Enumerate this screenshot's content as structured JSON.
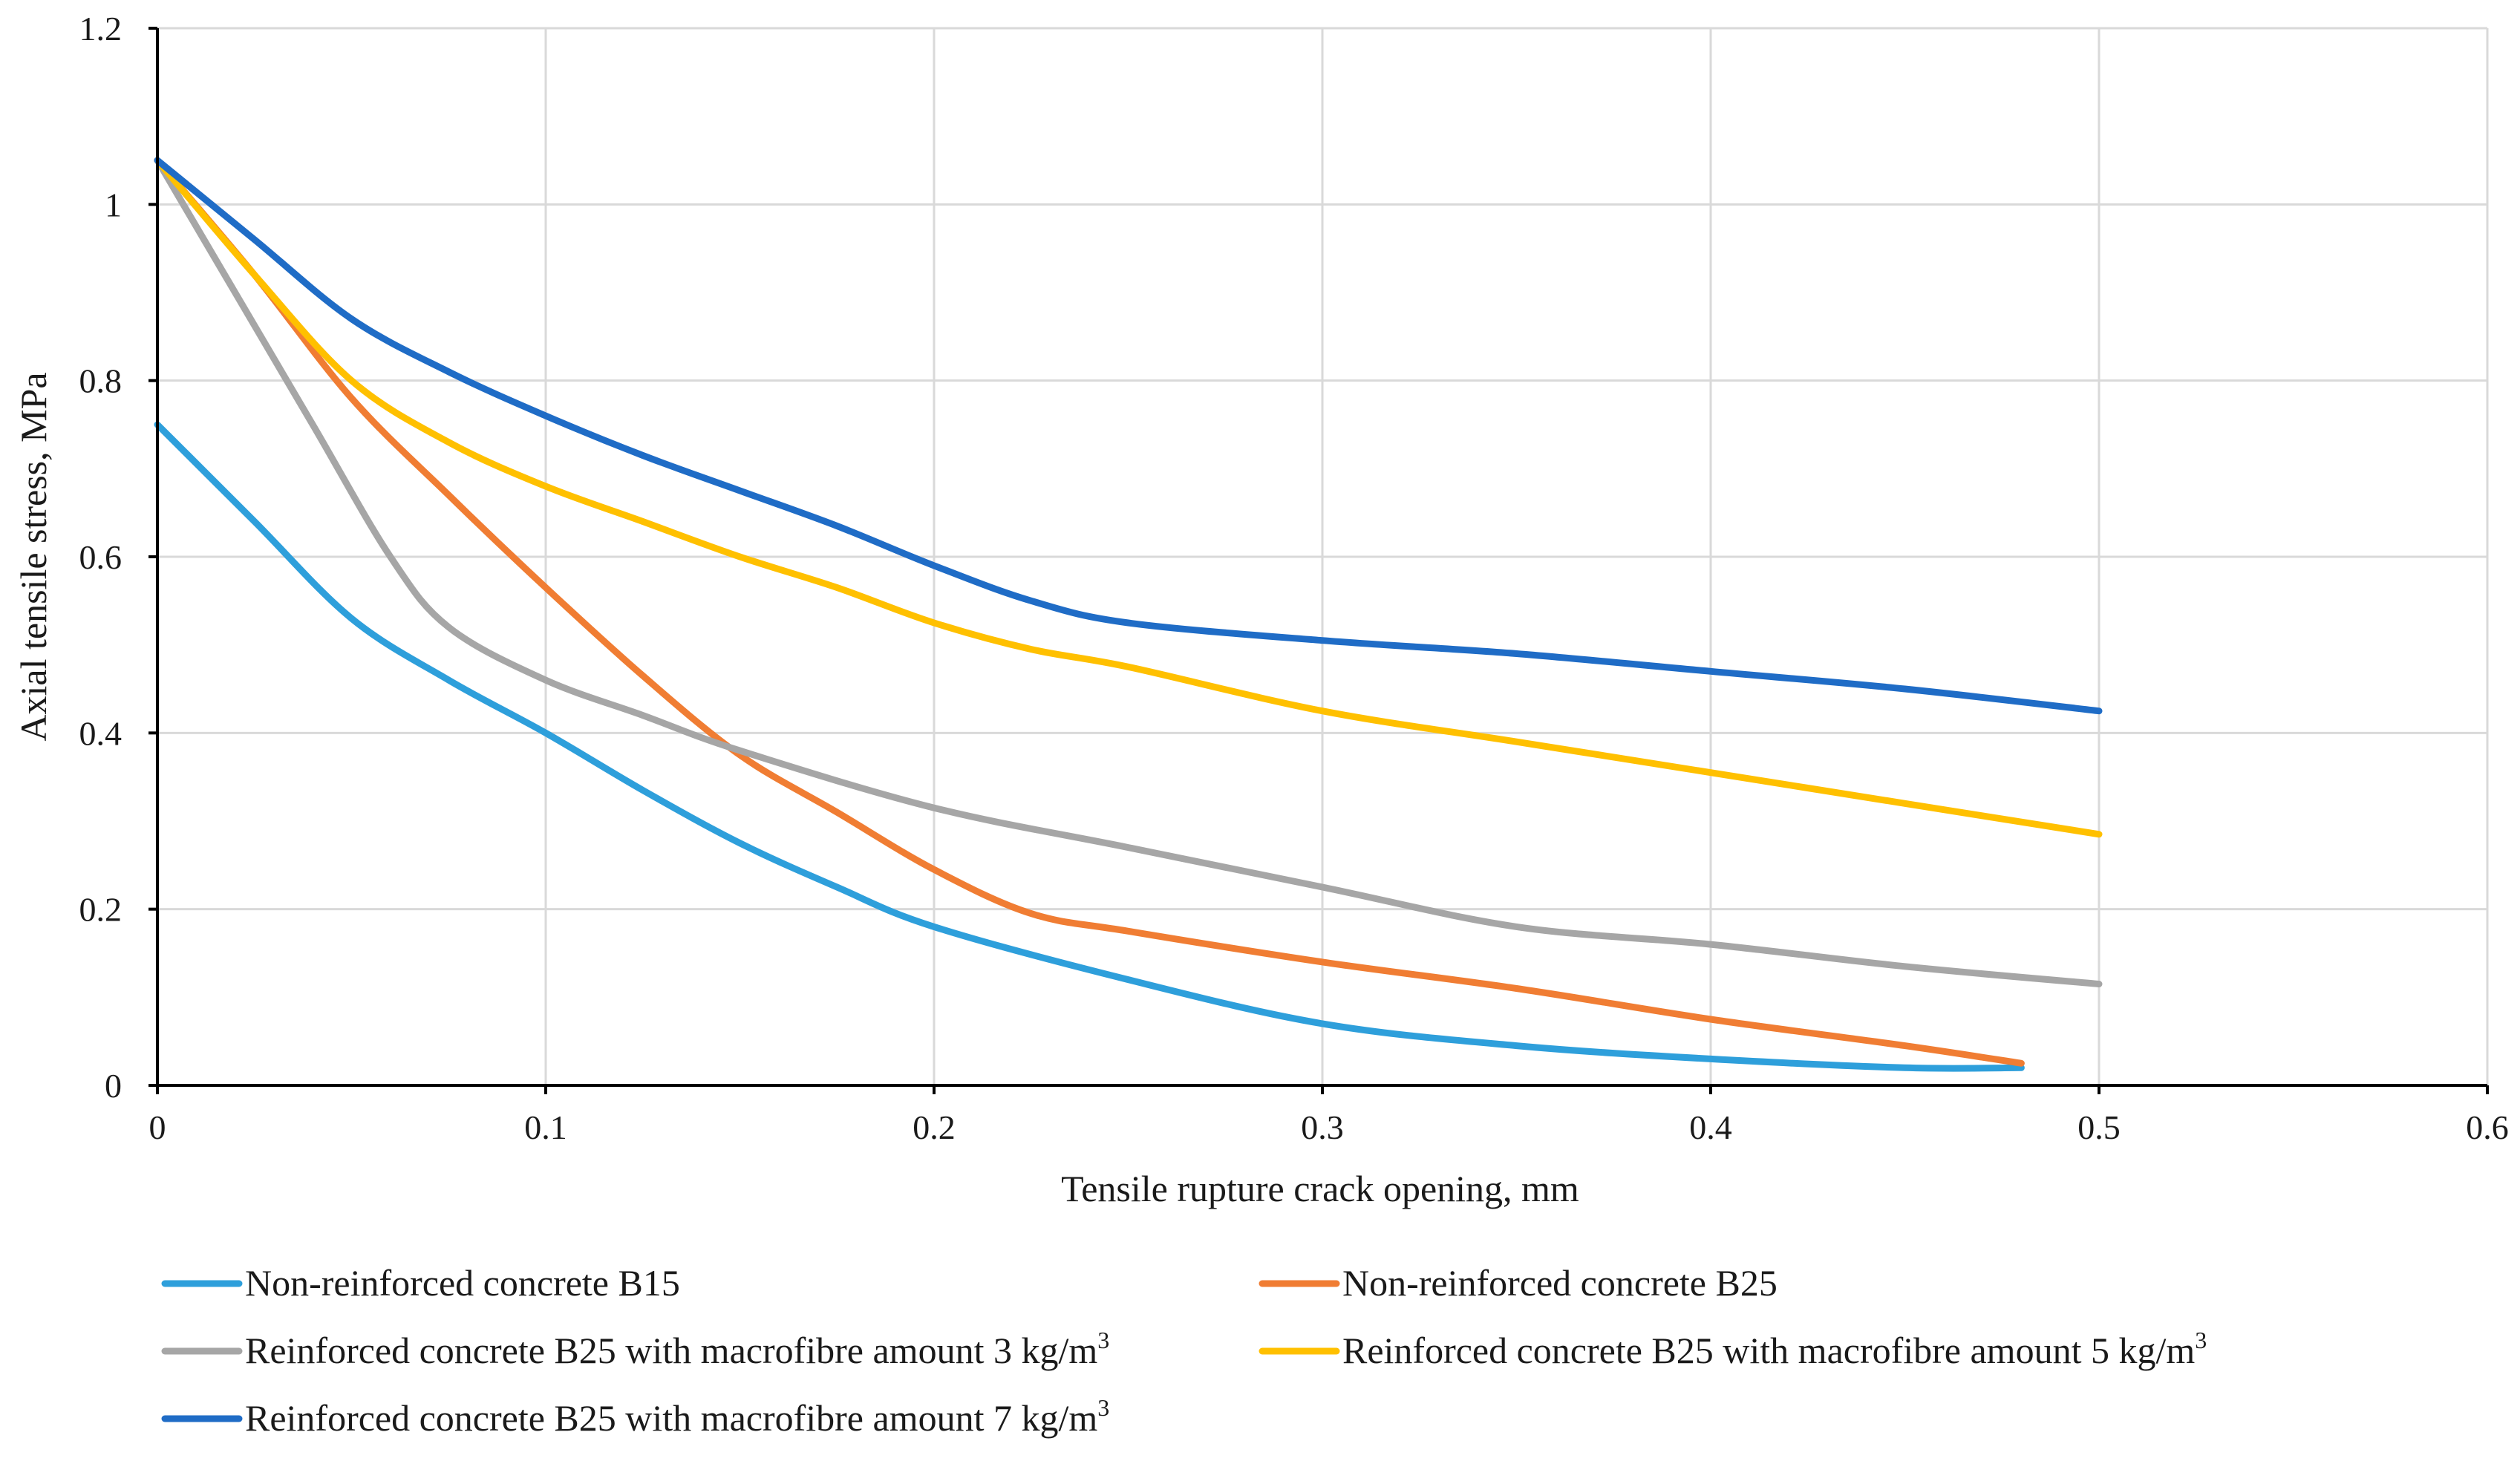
{
  "chart_data": {
    "type": "line",
    "title": "",
    "xlabel": "Tensile rupture crack opening, mm",
    "ylabel": "Axial tensile stress,  MPa",
    "xlim": [
      0,
      0.6
    ],
    "ylim": [
      0,
      1.2
    ],
    "xticks": [
      0,
      0.1,
      0.2,
      0.3,
      0.4,
      0.5,
      0.6
    ],
    "xtick_labels": [
      "0",
      "0.1",
      "0.2",
      "0.3",
      "0.4",
      "0.5",
      "0.6"
    ],
    "yticks": [
      0,
      0.2,
      0.4,
      0.6,
      0.8,
      1,
      1.2
    ],
    "ytick_labels": [
      "0",
      "0.2",
      "0.4",
      "0.6",
      "0.8",
      "1",
      "1.2"
    ],
    "grid": true,
    "legend_position": "bottom",
    "series": [
      {
        "name": "Non-reinforced concrete B15",
        "label_main": "Non-reinforced concrete B15",
        "label_sup": "",
        "color": "#2E9FDB",
        "x": [
          0,
          0.025,
          0.05,
          0.075,
          0.1,
          0.125,
          0.15,
          0.175,
          0.2,
          0.25,
          0.3,
          0.35,
          0.4,
          0.45,
          0.48
        ],
        "y": [
          0.75,
          0.64,
          0.53,
          0.46,
          0.4,
          0.335,
          0.275,
          0.225,
          0.18,
          0.12,
          0.07,
          0.045,
          0.03,
          0.02,
          0.02
        ]
      },
      {
        "name": "Non-reinforced concrete B25",
        "label_main": "Non-reinforced concrete B25",
        "label_sup": "",
        "color": "#F07D33",
        "x": [
          0,
          0.025,
          0.05,
          0.075,
          0.1,
          0.125,
          0.15,
          0.175,
          0.2,
          0.225,
          0.25,
          0.3,
          0.35,
          0.4,
          0.45,
          0.48
        ],
        "y": [
          1.05,
          0.92,
          0.78,
          0.67,
          0.565,
          0.465,
          0.375,
          0.31,
          0.245,
          0.195,
          0.175,
          0.14,
          0.11,
          0.075,
          0.045,
          0.025
        ]
      },
      {
        "name": "Reinforced concrete B25 with macrofibre amount 3 kg/m3",
        "label_main": "Reinforced concrete B25 with macrofibre amount  3 kg/m",
        "label_sup": "3",
        "color": "#A6A6A6",
        "x": [
          0,
          0.02,
          0.04,
          0.06,
          0.075,
          0.1,
          0.125,
          0.15,
          0.2,
          0.25,
          0.3,
          0.35,
          0.4,
          0.45,
          0.5
        ],
        "y": [
          1.05,
          0.9,
          0.75,
          0.6,
          0.52,
          0.46,
          0.42,
          0.38,
          0.315,
          0.27,
          0.225,
          0.18,
          0.16,
          0.135,
          0.115
        ]
      },
      {
        "name": "Reinforced concrete B25 with macrofibre amount 5 kg/m3",
        "label_main": "Reinforced concrete B25 with macrofibre amount   5 kg/m",
        "label_sup": "3",
        "color": "#FFC000",
        "x": [
          0,
          0.025,
          0.05,
          0.075,
          0.1,
          0.125,
          0.15,
          0.175,
          0.2,
          0.225,
          0.25,
          0.3,
          0.35,
          0.4,
          0.45,
          0.5
        ],
        "y": [
          1.05,
          0.92,
          0.8,
          0.73,
          0.68,
          0.64,
          0.6,
          0.565,
          0.525,
          0.495,
          0.475,
          0.425,
          0.39,
          0.355,
          0.32,
          0.285
        ]
      },
      {
        "name": "Reinforced concrete B25 with macrofibre amount 7 kg/m3",
        "label_main": "Reinforced concrete B25 with macrofibre amount  7 kg/m",
        "label_sup": "3",
        "color": "#1F6CC6",
        "x": [
          0,
          0.025,
          0.05,
          0.075,
          0.1,
          0.125,
          0.15,
          0.175,
          0.2,
          0.225,
          0.25,
          0.3,
          0.35,
          0.4,
          0.45,
          0.5
        ],
        "y": [
          1.05,
          0.96,
          0.87,
          0.81,
          0.76,
          0.715,
          0.675,
          0.635,
          0.59,
          0.55,
          0.525,
          0.505,
          0.49,
          0.47,
          0.45,
          0.425
        ]
      }
    ]
  }
}
